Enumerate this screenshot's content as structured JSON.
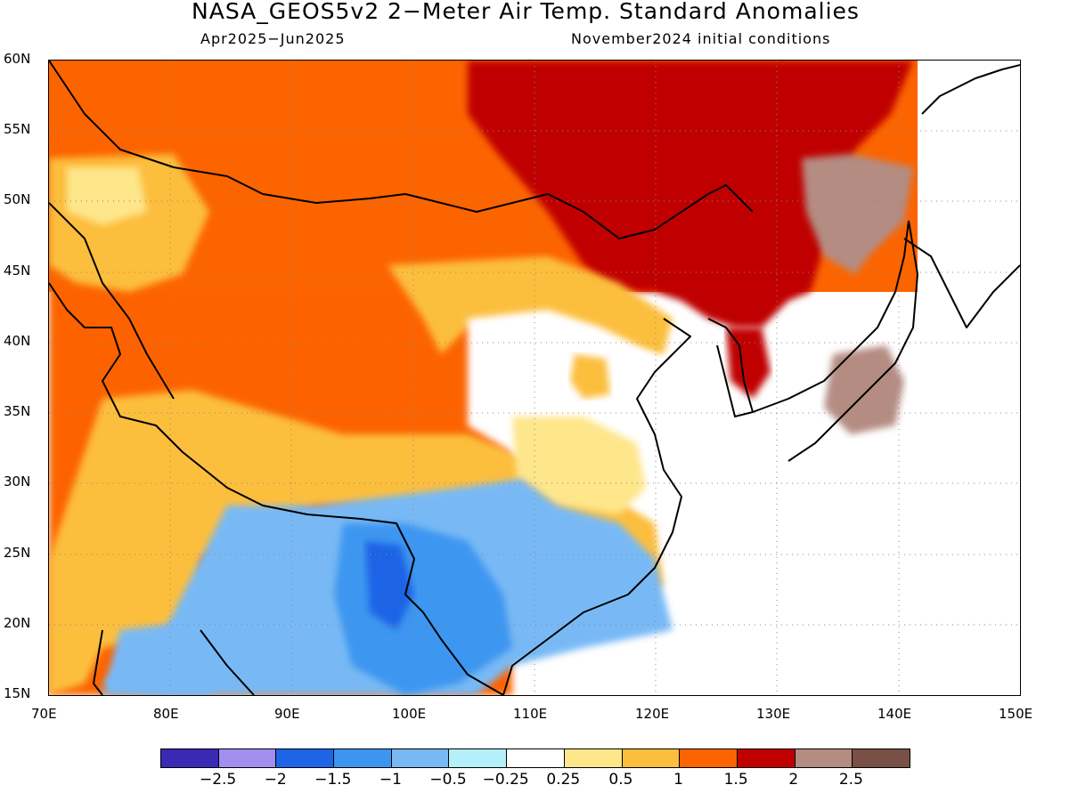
{
  "title": "NASA_GEOS5v2 2−Meter Air Temp. Standard Anomalies",
  "subtitle_left": "Apr2025−Jun2025",
  "subtitle_right": "November2024 initial conditions",
  "map": {
    "lon_range": [
      70,
      150
    ],
    "lat_range": [
      15,
      60
    ],
    "lat_labels": [
      "60N",
      "55N",
      "50N",
      "45N",
      "40N",
      "35N",
      "30N",
      "25N",
      "20N",
      "15N"
    ],
    "lon_labels": [
      "70E",
      "80E",
      "90E",
      "100E",
      "110E",
      "120E",
      "130E",
      "140E",
      "150E"
    ],
    "grid_lines": "dotted",
    "land_outline_color": "#000000"
  },
  "colorbar": {
    "labels": [
      "−2.5",
      "−2",
      "−1.5",
      "−1",
      "−0.5",
      "−0.25",
      "0.25",
      "0.5",
      "1",
      "1.5",
      "2",
      "2.5"
    ],
    "colors": [
      "#3a29b3",
      "#a18ff0",
      "#1e64e6",
      "#3c96f0",
      "#78b9f5",
      "#b4f0fa",
      "#ffffff",
      "#fee68b",
      "#fcbe3c",
      "#fc6400",
      "#c00000",
      "#b48c82",
      "#785046"
    ]
  }
}
